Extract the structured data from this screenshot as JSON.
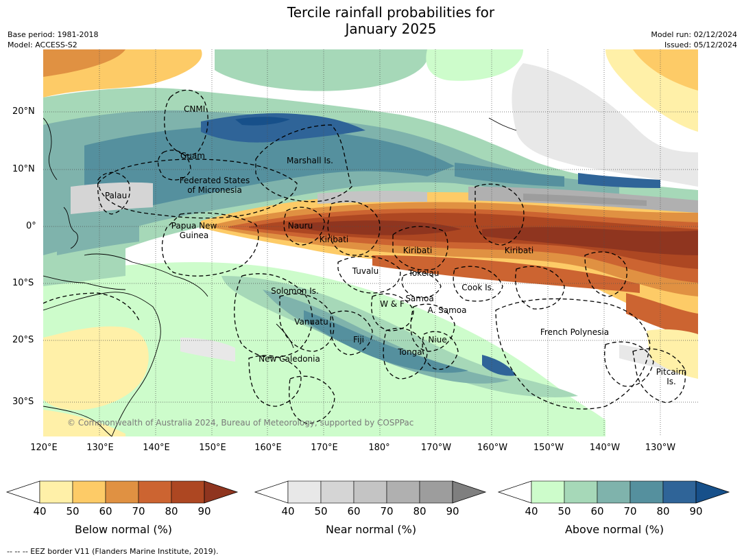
{
  "title_line1": "Tercile rainfall probabilities for",
  "title_line2": "January 2025",
  "base_period": "Base period: 1981-2018",
  "model": "Model: ACCESS-S2",
  "model_run": "Model run: 02/12/2024",
  "issued": "Issued: 05/12/2024",
  "copyright": "© Commonwealth of Australia 2024, Bureau of Meteorology, supported by COSPPac",
  "lat_labels": [
    "20°N",
    "10°N",
    "0°",
    "10°S",
    "20°S",
    "30°S"
  ],
  "lon_labels": [
    "120°E",
    "130°E",
    "140°E",
    "150°E",
    "160°E",
    "170°E",
    "180°",
    "170°W",
    "160°W",
    "150°W",
    "140°W",
    "130°W"
  ],
  "regions": [
    {
      "name": "CNMI",
      "lines": [
        "CNMI"
      ]
    },
    {
      "name": "Guam",
      "lines": [
        "Guam"
      ]
    },
    {
      "name": "Marshall Is.",
      "lines": [
        "Marshall Is."
      ]
    },
    {
      "name": "Federated States of Micronesia",
      "lines": [
        "Federated States",
        "of Micronesia"
      ]
    },
    {
      "name": "Palau",
      "lines": [
        "Palau"
      ]
    },
    {
      "name": "Papua New Guinea",
      "lines": [
        "Papua New",
        "Guinea"
      ]
    },
    {
      "name": "Nauru",
      "lines": [
        "Nauru"
      ]
    },
    {
      "name": "Kiribati (Gilbert)",
      "lines": [
        "Kiribati"
      ]
    },
    {
      "name": "Kiribati (Phoenix)",
      "lines": [
        "Kiribati"
      ]
    },
    {
      "name": "Kiribati (Line)",
      "lines": [
        "Kiribati"
      ]
    },
    {
      "name": "Tuvalu",
      "lines": [
        "Tuvalu"
      ]
    },
    {
      "name": "Tokelau",
      "lines": [
        "Tokelau"
      ]
    },
    {
      "name": "Cook Is.",
      "lines": [
        "Cook Is."
      ]
    },
    {
      "name": "Solomon Is.",
      "lines": [
        "Solomon Is."
      ]
    },
    {
      "name": "Samoa",
      "lines": [
        "Samoa"
      ]
    },
    {
      "name": "W & F",
      "lines": [
        "W & F"
      ]
    },
    {
      "name": "A. Samoa",
      "lines": [
        "A. Samoa"
      ]
    },
    {
      "name": "Vanuatu",
      "lines": [
        "Vanuatu"
      ]
    },
    {
      "name": "Fiji",
      "lines": [
        "Fiji"
      ]
    },
    {
      "name": "Niue",
      "lines": [
        "Niue"
      ]
    },
    {
      "name": "Tonga",
      "lines": [
        "Tonga"
      ]
    },
    {
      "name": "New Caledonia",
      "lines": [
        "New Caledonia"
      ]
    },
    {
      "name": "French Polynesia",
      "lines": [
        "French Polynesia"
      ]
    },
    {
      "name": "Pitcairn Is.",
      "lines": [
        "Pitcairn",
        "Is."
      ]
    }
  ],
  "colorbars": [
    {
      "id": "below",
      "label": "Below normal (%)",
      "ticks": [
        "40",
        "50",
        "60",
        "70",
        "80",
        "90"
      ],
      "colors": [
        "#fff0a8",
        "#fdcb67",
        "#e09142",
        "#cc6431",
        "#ad4722",
        "#8f351f"
      ]
    },
    {
      "id": "near",
      "label": "Near normal (%)",
      "ticks": [
        "40",
        "50",
        "60",
        "70",
        "80",
        "90"
      ],
      "colors": [
        "#e8e8e8",
        "#d5d5d5",
        "#c4c4c4",
        "#b0b0b0",
        "#9d9d9d",
        "#7f7f7f"
      ]
    },
    {
      "id": "above",
      "label": "Above normal (%)",
      "ticks": [
        "40",
        "50",
        "60",
        "70",
        "80",
        "90"
      ],
      "colors": [
        "#cdfccb",
        "#a6d8b8",
        "#7fb3ac",
        "#55909e",
        "#2f6498",
        "#17508a"
      ]
    }
  ],
  "footnote": "--  --  -- EEZ border V11 (Flanders Marine Institute, 2019)."
}
